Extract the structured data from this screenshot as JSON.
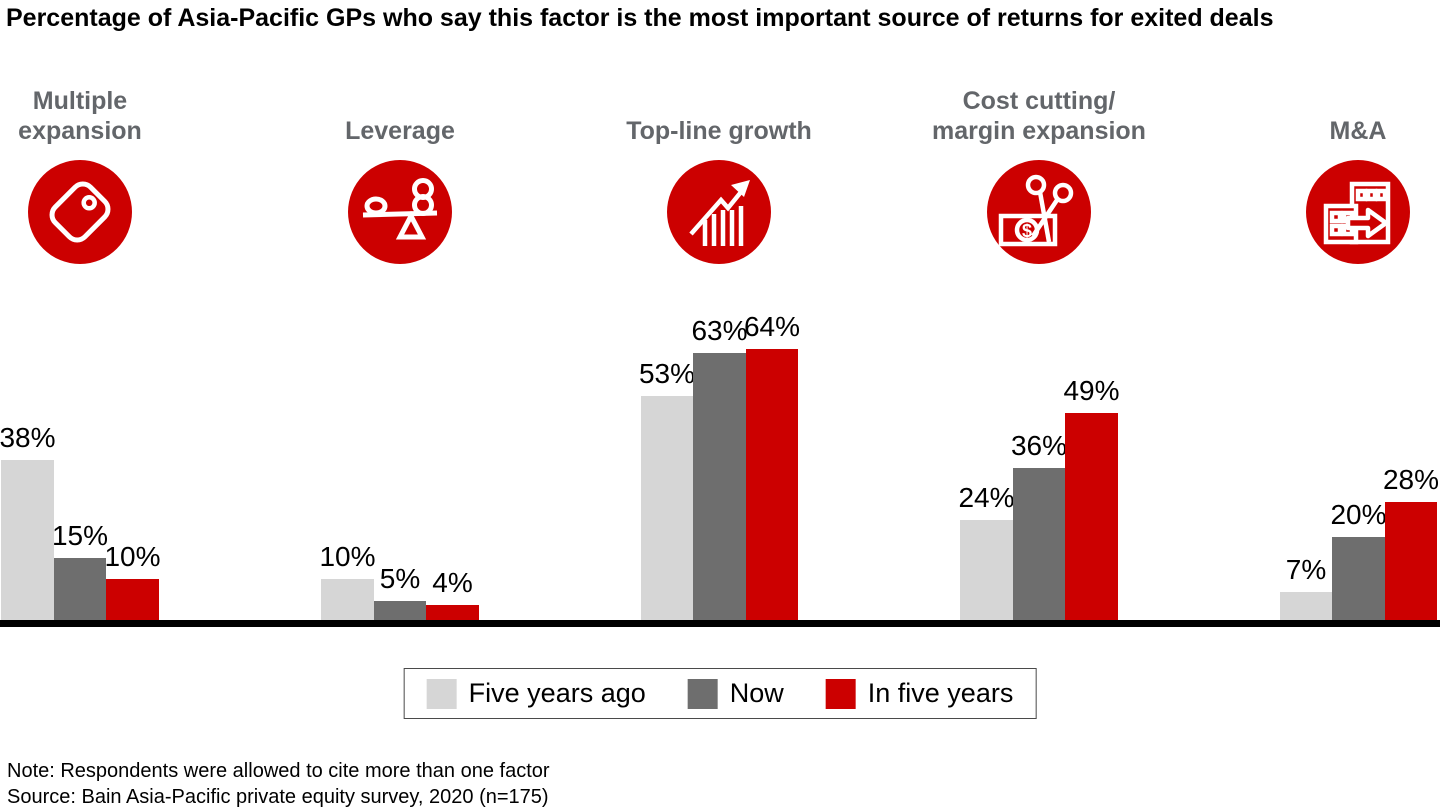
{
  "chart_data": {
    "type": "bar",
    "title": "Percentage of Asia-Pacific GPs who say this factor is the most important source of returns for exited deals",
    "categories": [
      "Multiple expansion",
      "Leverage",
      "Top-line growth",
      "Cost cutting/margin expansion",
      "M&A"
    ],
    "series": [
      {
        "name": "Five years ago",
        "color": "#d6d6d6",
        "values": [
          38,
          10,
          53,
          24,
          7
        ]
      },
      {
        "name": "Now",
        "color": "#6e6e6e",
        "values": [
          15,
          5,
          63,
          36,
          20
        ]
      },
      {
        "name": "In five years",
        "color": "#cc0000",
        "values": [
          10,
          4,
          64,
          49,
          28
        ]
      }
    ],
    "value_suffix": "%",
    "value_labels": true,
    "ylabel": "",
    "ylim": [
      0,
      70
    ],
    "grid": false,
    "legend_position": "bottom"
  },
  "category_headers": [
    {
      "lines": [
        "Multiple",
        "expansion"
      ],
      "icon": "price-tag-icon"
    },
    {
      "lines": [
        "Leverage"
      ],
      "icon": "balance-seesaw-icon"
    },
    {
      "lines": [
        "Top-line growth"
      ],
      "icon": "rising-chart-arrow-icon"
    },
    {
      "lines": [
        "Cost cutting/",
        "margin expansion"
      ],
      "icon": "scissors-cutting-money-icon"
    },
    {
      "lines": [
        "M&A"
      ],
      "icon": "buildings-merger-arrow-icon"
    }
  ],
  "footer": {
    "note": "Note: Respondents were allowed to cite more than one factor",
    "source": "Source: Bain Asia-Pacific private equity survey, 2020 (n=175)"
  },
  "colors": {
    "accent_red": "#cc0000",
    "bar_light_gray": "#d6d6d6",
    "bar_dark_gray": "#6e6e6e",
    "header_gray": "#63666a",
    "axis_black": "#000000"
  }
}
